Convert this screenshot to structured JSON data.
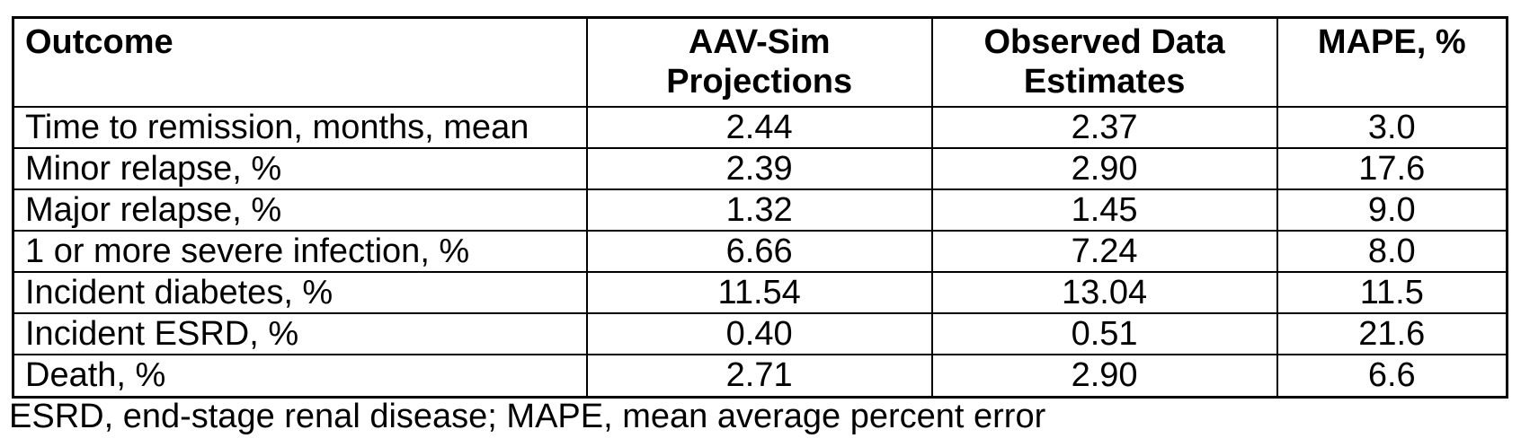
{
  "table": {
    "header": {
      "outcome": "Outcome",
      "aav_sim": "AAV-Sim\nProjections",
      "observed": "Observed Data\nEstimates",
      "mape": "MAPE, %"
    },
    "rows": [
      {
        "outcome": "Time to remission, months, mean",
        "aav_sim": "2.44",
        "observed": "2.37",
        "mape": "3.0"
      },
      {
        "outcome": "Minor relapse, %",
        "aav_sim": "2.39",
        "observed": "2.90",
        "mape": "17.6"
      },
      {
        "outcome": "Major relapse, %",
        "aav_sim": "1.32",
        "observed": "1.45",
        "mape": "9.0"
      },
      {
        "outcome": "1 or more severe infection, %",
        "aav_sim": "6.66",
        "observed": "7.24",
        "mape": "8.0"
      },
      {
        "outcome": "Incident diabetes, %",
        "aav_sim": "11.54",
        "observed": "13.04",
        "mape": "11.5"
      },
      {
        "outcome": "Incident ESRD, %",
        "aav_sim": "0.40",
        "observed": "0.51",
        "mape": "21.6"
      },
      {
        "outcome": "Death, %",
        "aav_sim": "2.71",
        "observed": "2.90",
        "mape": "6.6"
      }
    ]
  },
  "footnote": "ESRD, end-stage renal disease; MAPE, mean average percent error",
  "colors": {
    "border": "#000000",
    "text": "#000000",
    "background": "#ffffff"
  }
}
